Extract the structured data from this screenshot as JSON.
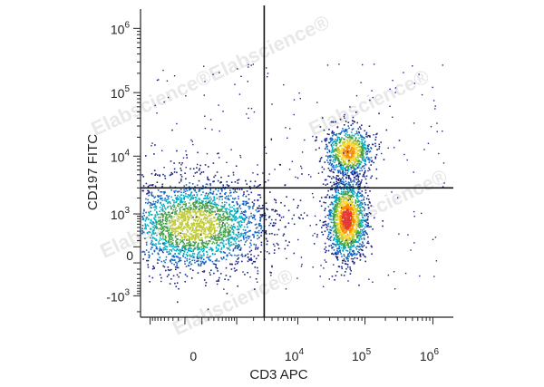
{
  "chart_data": {
    "type": "scatter",
    "subtype": "flow-cytometry-density-plot",
    "x_axis": {
      "label": "CD3 APC",
      "scale": "biexponential",
      "tick_labels": [
        {
          "value": 0,
          "base": "0",
          "exp": ""
        },
        {
          "value": 10000,
          "base": "10",
          "exp": "4"
        },
        {
          "value": 100000,
          "base": "10",
          "exp": "5"
        },
        {
          "value": 1000000,
          "base": "10",
          "exp": "6"
        }
      ]
    },
    "y_axis": {
      "label": "CD197 FITC",
      "scale": "biexponential",
      "tick_labels": [
        {
          "value": 1000000,
          "base": "10",
          "exp": "6"
        },
        {
          "value": 100000,
          "base": "10",
          "exp": "5"
        },
        {
          "value": 10000,
          "base": "10",
          "exp": "4"
        },
        {
          "value": 1000,
          "base": "10",
          "exp": "3"
        },
        {
          "value": 0,
          "base": "0",
          "exp": ""
        },
        {
          "value": -1000,
          "base": "-10",
          "exp": "3"
        }
      ]
    },
    "quadrant_gates": {
      "x_value": 3000,
      "y_value": 3000
    },
    "populations": [
      {
        "name": "CD3-neg CD197-neg",
        "center": {
          "x": 0,
          "y": 600
        },
        "density": "high"
      },
      {
        "name": "CD3-pos CD197-pos",
        "center": {
          "x": 60000,
          "y": 12000
        },
        "density": "high"
      },
      {
        "name": "CD3-pos CD197-neg",
        "center": {
          "x": 60000,
          "y": 800
        },
        "density": "very-high"
      }
    ],
    "color_scale": [
      "#1a237e",
      "#1565c0",
      "#00acc1",
      "#43a047",
      "#c0ca33",
      "#fdd835",
      "#fb8c00",
      "#e53935"
    ],
    "grid": false,
    "legend": "none"
  },
  "watermark": {
    "text": "Elabscience",
    "symbol": "®"
  }
}
